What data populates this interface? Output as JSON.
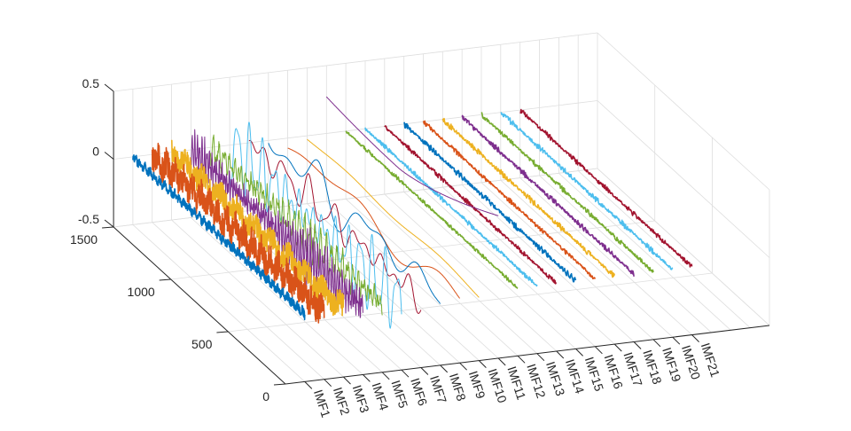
{
  "chart_data": {
    "type": "line",
    "title": "",
    "xlabel": "",
    "ylabel": "",
    "zlabel": "",
    "x_categories": [
      "IMF1",
      "IMF2",
      "IMF3",
      "IMF4",
      "IMF5",
      "IMF6",
      "IMF7",
      "IMF8",
      "IMF9",
      "IMF10",
      "IMF11",
      "IMF12",
      "IMF13",
      "IMF14",
      "IMF15",
      "IMF16",
      "IMF17",
      "IMF18",
      "IMF19",
      "IMF20",
      "IMF21"
    ],
    "xlim": [
      0,
      25
    ],
    "ylim": [
      0,
      1500
    ],
    "zlim": [
      -0.5,
      0.5
    ],
    "y_ticks": [
      "0",
      "500",
      "1000",
      "1500"
    ],
    "y_tick_values": [
      0,
      500,
      1000,
      1500
    ],
    "z_ticks": [
      "-0.5",
      "0",
      "0.5"
    ],
    "z_tick_values": [
      -0.5,
      0,
      0.5
    ],
    "grid": true,
    "series": [
      {
        "name": "IMF1",
        "color": "#0072BD",
        "kind": "noise",
        "amplitude": 0.04,
        "cycles": 700,
        "offset": 0
      },
      {
        "name": "IMF2",
        "color": "#D95319",
        "kind": "noise",
        "amplitude": 0.13,
        "cycles": 400,
        "offset": 0
      },
      {
        "name": "IMF3",
        "color": "#EDB120",
        "kind": "noise",
        "amplitude": 0.11,
        "cycles": 200,
        "offset": 0
      },
      {
        "name": "IMF4",
        "color": "#7E2F8E",
        "kind": "osc",
        "amplitude": 0.15,
        "cycles": 70,
        "offset": 0
      },
      {
        "name": "IMF5",
        "color": "#77AC30",
        "kind": "osc",
        "amplitude": 0.12,
        "cycles": 32,
        "offset": 0
      },
      {
        "name": "IMF6",
        "color": "#4DBEEE",
        "kind": "osc",
        "amplitude": 0.24,
        "cycles": 14,
        "offset": 0
      },
      {
        "name": "IMF7",
        "color": "#A2142F",
        "kind": "osc",
        "amplitude": 0.13,
        "cycles": 7,
        "offset": 0
      },
      {
        "name": "IMF8",
        "color": "#0072BD",
        "kind": "osc",
        "amplitude": 0.16,
        "cycles": 3.2,
        "offset": 0
      },
      {
        "name": "IMF9",
        "color": "#D95319",
        "kind": "osc",
        "amplitude": 0.1,
        "cycles": 1.4,
        "offset": -0.03
      },
      {
        "name": "IMF10",
        "color": "#EDB120",
        "kind": "osc",
        "amplitude": 0.05,
        "cycles": 0.7,
        "offset": -0.02
      },
      {
        "name": "IMF11",
        "color": "#7E2F8E",
        "kind": "trend",
        "start": 0.27,
        "plateau": 0.23,
        "end": 0.55,
        "offset": 0
      },
      {
        "name": "IMF12",
        "color": "#77AC30",
        "kind": "flat",
        "amplitude": 0.012,
        "offset": 0
      },
      {
        "name": "IMF13",
        "color": "#4DBEEE",
        "kind": "flat",
        "amplitude": 0.015,
        "offset": 0
      },
      {
        "name": "IMF14",
        "color": "#A2142F",
        "kind": "flat",
        "amplitude": 0.015,
        "offset": 0
      },
      {
        "name": "IMF15",
        "color": "#0072BD",
        "kind": "flat",
        "amplitude": 0.02,
        "offset": 0
      },
      {
        "name": "IMF16",
        "color": "#D95319",
        "kind": "flat",
        "amplitude": 0.015,
        "offset": 0
      },
      {
        "name": "IMF17",
        "color": "#EDB120",
        "kind": "flat",
        "amplitude": 0.018,
        "offset": 0
      },
      {
        "name": "IMF18",
        "color": "#7E2F8E",
        "kind": "flat",
        "amplitude": 0.018,
        "offset": 0
      },
      {
        "name": "IMF19",
        "color": "#77AC30",
        "kind": "flat",
        "amplitude": 0.016,
        "offset": 0
      },
      {
        "name": "IMF20",
        "color": "#4DBEEE",
        "kind": "flat",
        "amplitude": 0.018,
        "offset": 0
      },
      {
        "name": "IMF21",
        "color": "#A2142F",
        "kind": "flat",
        "amplitude": 0.016,
        "offset": 0
      }
    ]
  }
}
